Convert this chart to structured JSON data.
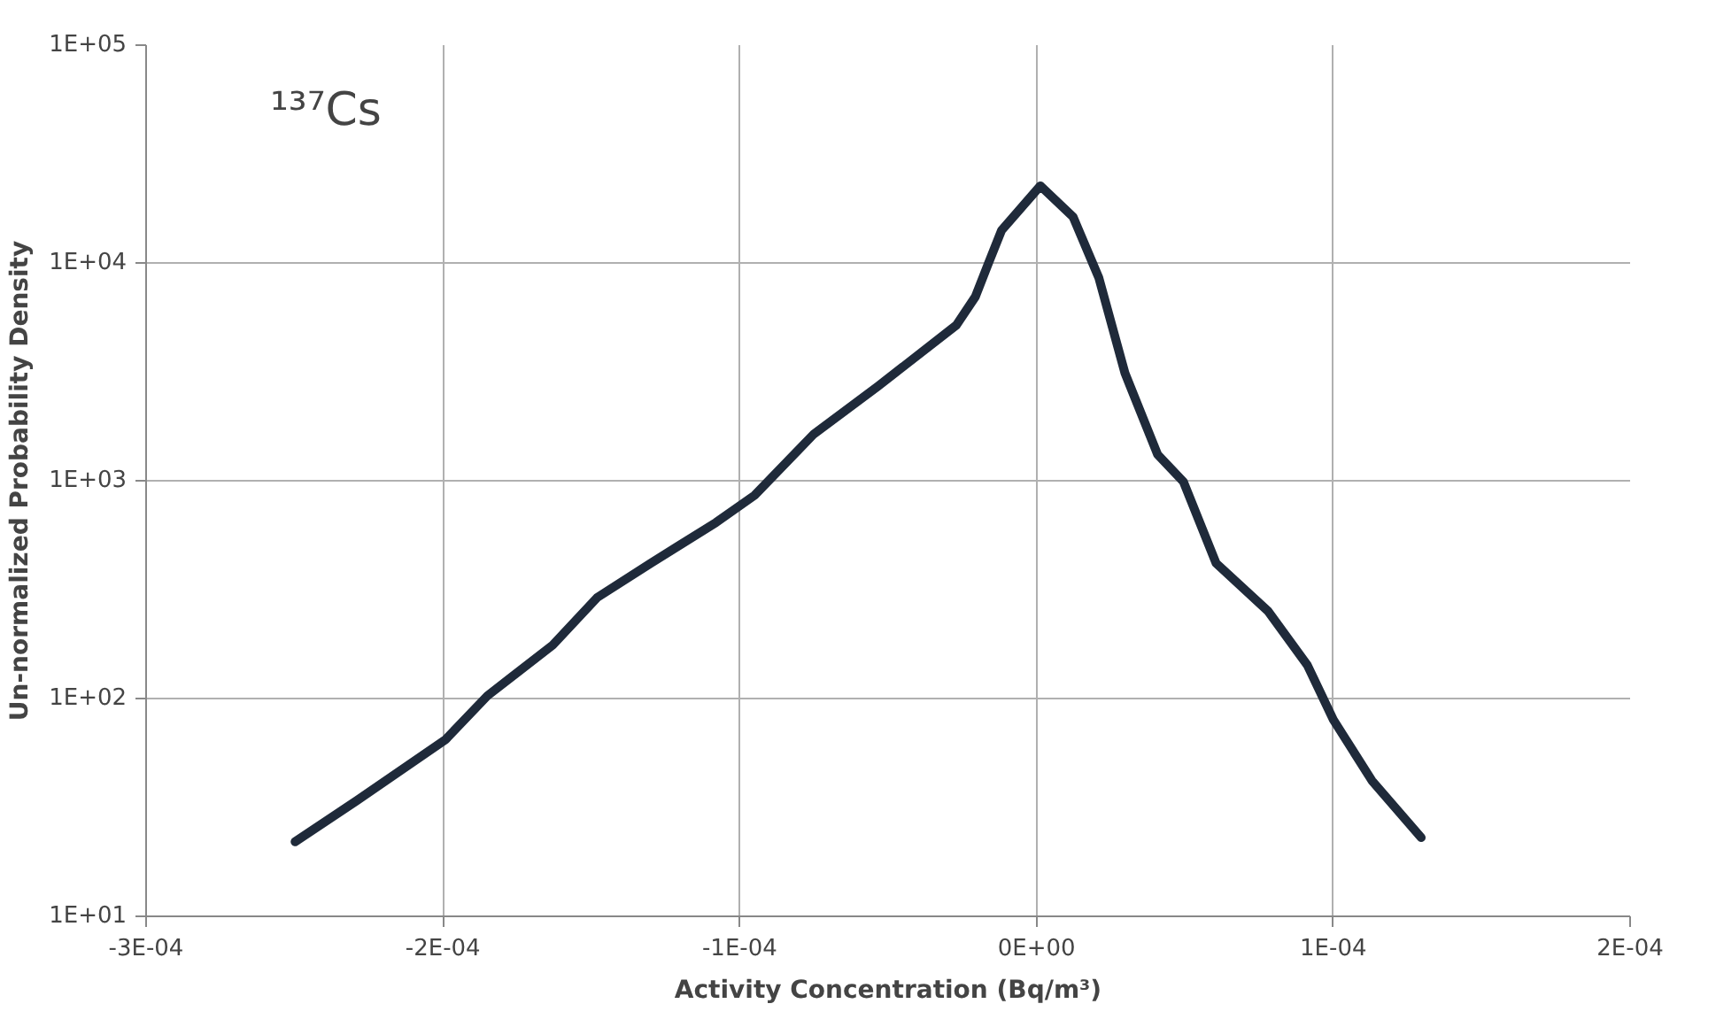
{
  "chart_data": {
    "type": "line",
    "xlabel": "Activity Concentration (Bq/m³)",
    "ylabel": "Un-normalized Probability Density",
    "annotations": [
      "¹³⁷Cs"
    ],
    "x": [
      -0.0002498,
      -0.000229,
      -0.000199,
      -0.000185,
      -0.000163,
      -0.000148,
      -0.00013,
      -0.000108,
      -9.5e-05,
      -7.5e-05,
      -5.35e-05,
      -2.7e-05,
      -2.06e-05,
      -1.63e-05,
      -1.18e-05,
      1.3e-06,
      1.23e-05,
      2.1e-05,
      2.98e-05,
      4.08e-05,
      4.95e-05,
      6.05e-05,
      7.8e-05,
      9.13e-05,
      0.0001,
      0.000113,
      0.0001296
    ],
    "series": [
      {
        "color": "#1f2a3a",
        "values": [
          22,
          34,
          65,
          103,
          176,
          291,
          418,
          643,
          857,
          1640,
          2710,
          5180,
          7000,
          9880,
          14100,
          22600,
          16300,
          8550,
          3120,
          1320,
          989,
          418,
          252,
          142,
          80,
          42,
          23
        ]
      }
    ],
    "xlim": [
      -0.0003,
      0.0002
    ],
    "xticks": [
      {
        "value": -0.0003,
        "label": "-3E-04"
      },
      {
        "value": -0.0002,
        "label": "-2E-04"
      },
      {
        "value": -0.0001,
        "label": "-1E-04"
      },
      {
        "value": 0,
        "label": "0E+00"
      },
      {
        "value": 0.0001,
        "label": "1E-04"
      },
      {
        "value": 0.0002,
        "label": "2E-04"
      }
    ],
    "ylim": [
      10,
      100000
    ],
    "yticks": [
      {
        "value": 10,
        "label": "1E+01"
      },
      {
        "value": 100,
        "label": "1E+02"
      },
      {
        "value": 1000,
        "label": "1E+03"
      },
      {
        "value": 10000,
        "label": "1E+04"
      },
      {
        "value": 100000,
        "label": "1E+05"
      }
    ],
    "log": "y",
    "grid": true,
    "line_style": "solid"
  }
}
